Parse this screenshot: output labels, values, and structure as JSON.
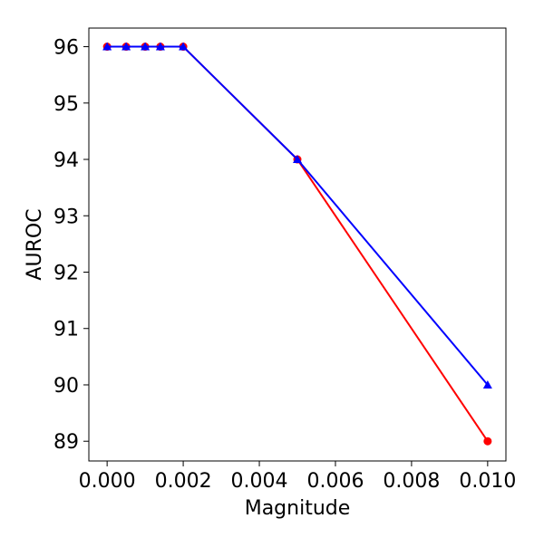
{
  "chart_data": {
    "type": "line",
    "title": "",
    "xlabel": "Magnitude",
    "ylabel": "AUROC",
    "xlim": [
      -0.00048,
      0.01048
    ],
    "ylim": [
      88.65,
      96.33
    ],
    "xticks": [
      0.0,
      0.002,
      0.004,
      0.006,
      0.008,
      0.01
    ],
    "xtick_labels": [
      "0.000",
      "0.002",
      "0.004",
      "0.006",
      "0.008",
      "0.010"
    ],
    "yticks": [
      89,
      90,
      91,
      92,
      93,
      94,
      95,
      96
    ],
    "ytick_labels": [
      "89",
      "90",
      "91",
      "92",
      "93",
      "94",
      "95",
      "96"
    ],
    "grid": false,
    "legend": "none",
    "series": [
      {
        "color": "#ff0000",
        "marker": "circle",
        "x": [
          0.0,
          0.0005,
          0.001,
          0.0014,
          0.002,
          0.005,
          0.01
        ],
        "y": [
          96,
          96,
          96,
          96,
          96,
          94,
          89
        ]
      },
      {
        "color": "#0000ff",
        "marker": "triangle",
        "x": [
          0.0,
          0.0005,
          0.001,
          0.0014,
          0.002,
          0.005,
          0.01
        ],
        "y": [
          96,
          96,
          96,
          96,
          96,
          94,
          90
        ]
      }
    ]
  }
}
